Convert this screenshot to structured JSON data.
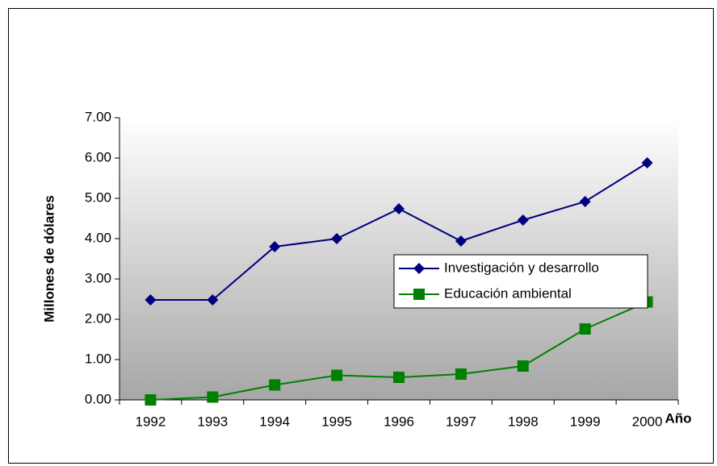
{
  "chart_data": {
    "type": "line",
    "xlabel": "Año",
    "ylabel": "Millones de dólares",
    "categories": [
      "1992",
      "1993",
      "1994",
      "1995",
      "1996",
      "1997",
      "1998",
      "1999",
      "2000"
    ],
    "series": [
      {
        "name": "Investigación y desarrollo",
        "color": "#000080",
        "marker": "diamond",
        "values": [
          2.48,
          2.48,
          3.8,
          4.0,
          4.74,
          3.94,
          4.46,
          4.92,
          5.88
        ]
      },
      {
        "name": "Educación ambiental",
        "color": "#008000",
        "marker": "square",
        "values": [
          0.0,
          0.07,
          0.37,
          0.61,
          0.56,
          0.64,
          0.84,
          1.76,
          2.43
        ]
      }
    ],
    "ylim": [
      0,
      7
    ],
    "yticks": [
      {
        "value": 0,
        "label": "0.00"
      },
      {
        "value": 1,
        "label": "1.00"
      },
      {
        "value": 2,
        "label": "2.00"
      },
      {
        "value": 3,
        "label": "3.00"
      },
      {
        "value": 4,
        "label": "4.00"
      },
      {
        "value": 5,
        "label": "5.00"
      },
      {
        "value": 6,
        "label": "6.00"
      },
      {
        "value": 7,
        "label": "7.00"
      }
    ],
    "grid": false
  }
}
